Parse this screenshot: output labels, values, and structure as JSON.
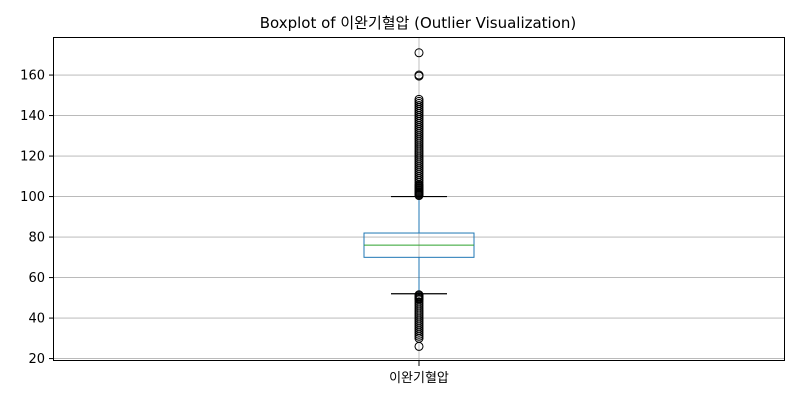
{
  "chart_data": {
    "type": "boxplot",
    "title": "Boxplot of 이완기혈압 (Outlier Visualization)",
    "xlabel": "",
    "ylabel": "",
    "categories": [
      "이완기혈압"
    ],
    "ylim": [
      19.3,
      178.3
    ],
    "yticks": [
      20,
      40,
      60,
      80,
      100,
      120,
      140,
      160
    ],
    "grid": true,
    "box": {
      "q1": 70,
      "median": 76,
      "q3": 82,
      "whisker_low": 52,
      "whisker_high": 100
    },
    "outliers_high": [
      100.5,
      101,
      101.5,
      102,
      102.5,
      103,
      103.5,
      104,
      104.5,
      105,
      105.5,
      106,
      107,
      108,
      109,
      110,
      111,
      112,
      113,
      114,
      115,
      116,
      117,
      118,
      119,
      120,
      121,
      122,
      123,
      124,
      125,
      126,
      127,
      128,
      129,
      130,
      131,
      132,
      133,
      134,
      135,
      136,
      137,
      138,
      139,
      140,
      141,
      142,
      143,
      144,
      145,
      146,
      147,
      148,
      159.5,
      160,
      171
    ],
    "outliers_low": [
      26,
      30,
      31,
      32,
      33,
      34,
      35,
      36,
      37,
      38,
      39,
      40,
      41,
      42,
      43,
      44,
      45,
      46,
      47,
      48,
      49,
      49.5,
      50,
      50.5,
      51,
      51.5
    ],
    "colors": {
      "box": "#1f77b4",
      "median": "#2ca02c",
      "cap": "#000000",
      "outlier": "#000000",
      "grid": "#b0b0b0"
    }
  }
}
